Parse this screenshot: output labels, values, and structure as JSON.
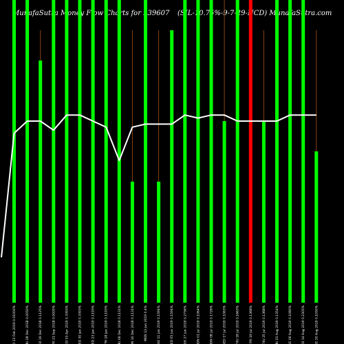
{
  "header": {
    "left": "MunafaSutra  Money  Flow  Charts for 939607",
    "right": "(SIL-10.75%-9-7-29-NCD) MunafaSutra.com"
  },
  "colors": {
    "background": "#000000",
    "inflow": "#00ff00",
    "outflow": "#ff0000",
    "line": "#ffffff",
    "wick": "#8b4513"
  },
  "chart_data": {
    "type": "bar",
    "title": "MunafaSutra  Money  Flow  Charts for 939607",
    "subtitle": "(SIL-10.75%-9-7-29-NCD) MunafaSutra.com",
    "ylim": [
      0,
      100
    ],
    "categories": [
      "WED 13 Feb 2019 0.01000%",
      "THU 28 Dec 2018 0.0050%",
      "WED 19 Dec 2018 0.1125%",
      "FRI 21 Sep 2018 0.0000%",
      "WED 03 Apr 2019 0.3393%",
      "WED 30 Jan 2019 0.3393%",
      "WED 23 Jan 2019 0.1193%",
      "FRI 18 Jan 2019 0.1193%",
      "THU 06 Dec 2018 0.1131%",
      "MON 10 Dec 2018 0.1131%",
      "MON 13 Jun 2019 0.4%",
      "TUE 11 Jun 2019 0.1594%",
      "WED 05 Jun 2019 0.1594%",
      "TUE 27 Jun 2019 0.2756%",
      "MON 01 Jul 2019 0.1064%",
      "MON 08 Jul 2019 0.1726%",
      "WED 17 Jul 2019 0.1063%",
      "THU 18 Jul 2019 0.1663%",
      "FRI 19 Jul 2019 0.1368%",
      "THU 25 Jul 2019 0.1368%",
      "THU 01 Aug 2019 0.1354%",
      "TUE 06 Aug 2019 0.1080%",
      "WED 14 Aug 2019 0.2305%",
      "TUE 20 Aug 2019 0.1050%"
    ],
    "series": [
      {
        "values": [
          100,
          100,
          80,
          100,
          100,
          100,
          100,
          100,
          100,
          40,
          100,
          40,
          90,
          100,
          100,
          100,
          60,
          100,
          100,
          60,
          100,
          100,
          100,
          50
        ],
        "direction": [
          "in",
          "in",
          "in",
          "in",
          "in",
          "in",
          "in",
          "in",
          "in",
          "in",
          "in",
          "in",
          "in",
          "in",
          "in",
          "in",
          "in",
          "in",
          "out",
          "in",
          "in",
          "in",
          "in",
          "in"
        ],
        "wick_top": [
          100,
          100,
          90,
          100,
          100,
          100,
          100,
          100,
          100,
          90,
          100,
          90,
          90,
          100,
          100,
          100,
          100,
          100,
          100,
          90,
          100,
          100,
          100,
          90
        ]
      },
      {
        "type": "line",
        "values": [
          56,
          60,
          60,
          57,
          62,
          62,
          60,
          58,
          47,
          58,
          59,
          59,
          59,
          62,
          61,
          62,
          62,
          60,
          60,
          60,
          60,
          62,
          62,
          62
        ]
      }
    ]
  }
}
